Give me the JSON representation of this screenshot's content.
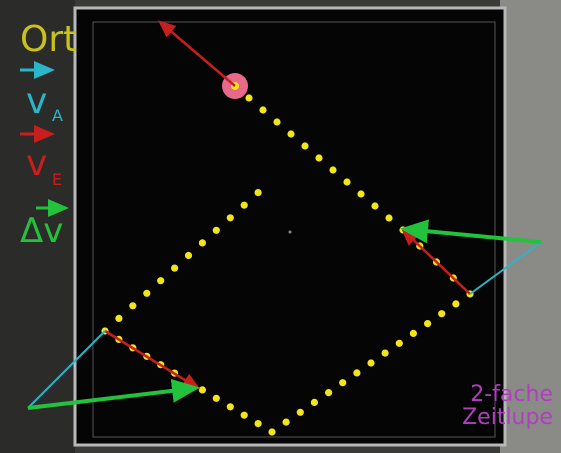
{
  "legend": {
    "ort": "Ort",
    "va_main": "v",
    "va_sub": "A",
    "ve_main": "v",
    "ve_sub": "E",
    "dv": "Δv"
  },
  "caption": {
    "line1": "2-fache",
    "line2": "Zeitlupe"
  },
  "colors": {
    "position_dots": "#f2e51a",
    "v_initial": "#2ab5c8",
    "v_final": "#c81e1e",
    "delta_v": "#23c23c",
    "caption": "#b03fc0",
    "puck": "#e86a8a"
  }
}
